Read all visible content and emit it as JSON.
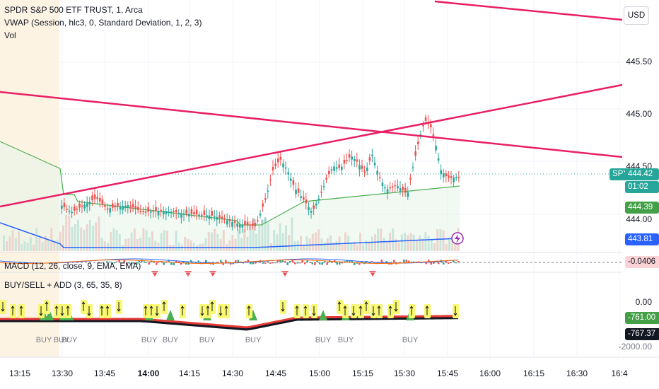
{
  "header": {
    "symbol_line": "SPDR S&P 500 ETF TRUST, 1, Arca",
    "vwap_line": "VWAP (Session, hlc3, 0, Standard Deviation, 1, 2, 3)",
    "vol_line": "Vol",
    "macd_line": "MACD (12, 26, close, 9, EMA, EMA)",
    "buysell_line": "BUY/SELL + ADD (3, 65, 35, 8)"
  },
  "currency_button": "USD",
  "price_axis": {
    "ticks": [
      "445.50",
      "445.00",
      "444.50",
      "444.00"
    ],
    "current_symbol": "SPY",
    "current_price": "444.42",
    "countdown": "01:02",
    "vwap_value": "444.39",
    "blue_value": "443.81",
    "macd_value": "-0.0406"
  },
  "lower_axis": {
    "ticks": [
      "0.00",
      "-2000.00"
    ],
    "value_green": "-761.00",
    "value_dark": "-767.37"
  },
  "time_axis": [
    "13:15",
    "13:30",
    "13:45",
    "14:00",
    "14:15",
    "14:30",
    "14:45",
    "15:00",
    "15:15",
    "15:30",
    "15:45",
    "16:00",
    "16:15",
    "16:30",
    "16:4"
  ],
  "buy_labels": [
    "BUY",
    "BUY",
    "BUY",
    "BUY",
    "BUY",
    "BUY",
    "BUY",
    "BUY",
    "BUY",
    "BUY"
  ],
  "colors": {
    "up": "#26a69a",
    "down": "#ef5350",
    "trendline": "#e91e63",
    "vwap": "#4caf50",
    "blue_line": "#2962ff",
    "premarket_bg": "#fdf3e3"
  },
  "icons": [
    "flash-icon",
    "up-arrow-icon",
    "down-arrow-icon",
    "buy-triangle-icon",
    "sell-triangle-icon"
  ]
}
